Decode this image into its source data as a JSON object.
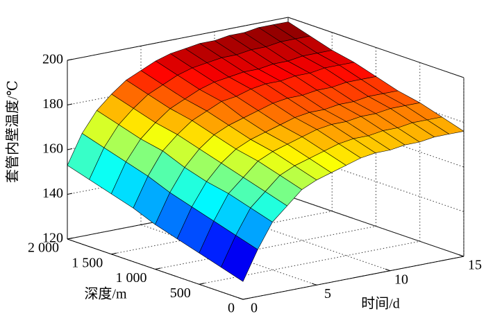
{
  "chart_data": {
    "type": "surface",
    "x_label": "时间/d",
    "y_label": "深度/m",
    "z_label": "套管内壁温度/℃",
    "x": [
      0,
      1,
      2,
      3,
      4,
      5,
      6,
      7,
      8,
      9,
      10,
      11,
      12,
      13,
      14,
      15
    ],
    "y": [
      0,
      250,
      500,
      750,
      1000,
      1250,
      1500,
      1750,
      2000
    ],
    "values": [
      [
        128,
        141,
        152,
        158,
        164,
        167,
        169,
        171,
        173,
        174,
        174,
        175,
        175,
        176,
        176,
        176
      ],
      [
        131,
        144,
        155,
        161,
        167,
        170,
        172,
        174,
        176,
        177,
        177,
        178,
        178,
        179,
        179,
        179
      ],
      [
        134,
        147,
        158,
        164,
        170,
        173,
        175,
        177,
        179,
        180,
        180,
        181,
        181,
        182,
        182,
        182
      ],
      [
        137,
        150,
        160,
        167,
        172,
        175,
        177,
        179,
        181,
        182,
        182,
        183,
        183,
        184,
        184,
        184
      ],
      [
        140,
        153,
        163,
        170,
        175,
        178,
        180,
        182,
        184,
        185,
        185,
        186,
        186,
        187,
        187,
        187
      ],
      [
        144,
        157,
        167,
        173,
        178,
        181,
        184,
        185,
        187,
        188,
        188,
        189,
        189,
        190,
        190,
        190
      ],
      [
        147,
        160,
        169,
        175,
        180,
        183,
        186,
        188,
        189,
        190,
        190,
        191,
        191,
        192,
        192,
        192
      ],
      [
        150,
        163,
        172,
        178,
        183,
        186,
        189,
        191,
        192,
        193,
        193,
        194,
        194,
        195,
        195,
        195
      ],
      [
        153,
        166,
        175,
        181,
        186,
        189,
        192,
        194,
        195,
        196,
        196,
        197,
        197,
        198,
        198,
        198
      ]
    ],
    "xlim": [
      0,
      15
    ],
    "ylim": [
      0,
      2000
    ],
    "zlim": [
      120,
      200
    ],
    "xticks": [
      0,
      5,
      10,
      15
    ],
    "yticks": [
      0,
      500,
      {
        "value": 1000,
        "label": "1 000"
      },
      {
        "value": 1500,
        "label": "1 500"
      },
      {
        "value": 2000,
        "label": "2 000"
      }
    ],
    "zticks": [
      120,
      140,
      160,
      180,
      200
    ],
    "grid": true,
    "colormap": "jet"
  }
}
